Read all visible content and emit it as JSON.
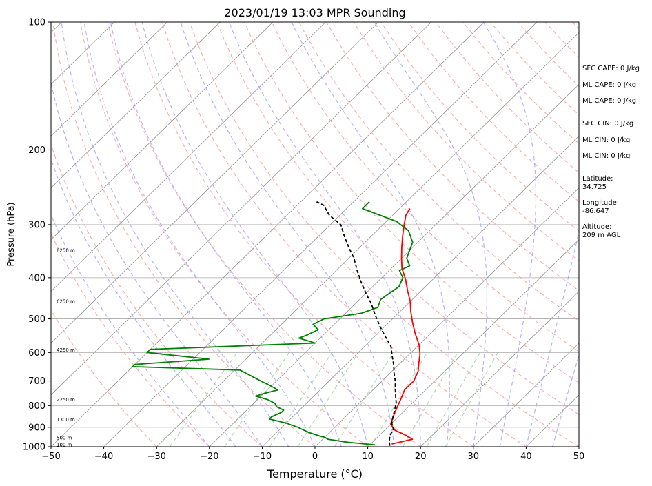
{
  "chart_data": {
    "type": "line",
    "title": "2023/01/19 13:03 MPR Sounding",
    "xlabel": "Temperature (°C)",
    "ylabel": "Pressure (hPa)",
    "xlim": [
      -50,
      50
    ],
    "ylim": [
      1000,
      100
    ],
    "y_scale": "log",
    "grid": true,
    "x_ticks": [
      "−50",
      "−40",
      "−30",
      "−20",
      "−10",
      "0",
      "10",
      "20",
      "30",
      "40",
      "50"
    ],
    "y_ticks": [
      "100",
      "200",
      "300",
      "400",
      "500",
      "600",
      "700",
      "800",
      "900",
      "1000"
    ],
    "height_labels": [
      {
        "p": 990,
        "text": "100 m"
      },
      {
        "p": 955,
        "text": "500 m"
      },
      {
        "p": 865,
        "text": "1300 m"
      },
      {
        "p": 775,
        "text": "2250 m"
      },
      {
        "p": 592,
        "text": "4250 m"
      },
      {
        "p": 455,
        "text": "6250 m"
      },
      {
        "p": 345,
        "text": "8250 m"
      }
    ],
    "series": [
      {
        "color": "#ff0000",
        "style": "solid",
        "points": [
          [
            14,
            985
          ],
          [
            17,
            960
          ],
          [
            15,
            940
          ],
          [
            12,
            915
          ],
          [
            10,
            885
          ],
          [
            9,
            850
          ],
          [
            8,
            810
          ],
          [
            7,
            770
          ],
          [
            6,
            735
          ],
          [
            6,
            700
          ],
          [
            5,
            665
          ],
          [
            3.5,
            635
          ],
          [
            2,
            605
          ],
          [
            0,
            575
          ],
          [
            -3,
            540
          ],
          [
            -5.5,
            510
          ],
          [
            -8,
            480
          ],
          [
            -10,
            455
          ],
          [
            -12.5,
            430
          ],
          [
            -15,
            405
          ],
          [
            -18,
            380
          ],
          [
            -20,
            360
          ],
          [
            -22,
            340
          ],
          [
            -24,
            320
          ],
          [
            -26,
            300
          ],
          [
            -27.5,
            285
          ],
          [
            -28,
            275
          ]
        ]
      },
      {
        "color": "#008000",
        "style": "solid",
        "points": [
          [
            11,
            990
          ],
          [
            5,
            975
          ],
          [
            1,
            960
          ],
          [
            0,
            950
          ],
          [
            -1,
            945
          ],
          [
            -4,
            925
          ],
          [
            -7,
            900
          ],
          [
            -10,
            880
          ],
          [
            -14,
            860
          ],
          [
            -14,
            850
          ],
          [
            -13,
            830
          ],
          [
            -13,
            820
          ],
          [
            -15,
            805
          ],
          [
            -16,
            790
          ],
          [
            -18,
            775
          ],
          [
            -21,
            760
          ],
          [
            -20,
            750
          ],
          [
            -18,
            735
          ],
          [
            -20,
            720
          ],
          [
            -23,
            700
          ],
          [
            -29,
            660
          ],
          [
            -50,
            648
          ],
          [
            -50,
            640
          ],
          [
            -37,
            622
          ],
          [
            -50,
            600
          ],
          [
            -50,
            590
          ],
          [
            -20,
            570
          ],
          [
            -24,
            555
          ],
          [
            -23,
            545
          ],
          [
            -22,
            530
          ],
          [
            -24,
            515
          ],
          [
            -23,
            500
          ],
          [
            -17,
            485
          ],
          [
            -15,
            470
          ],
          [
            -16,
            450
          ],
          [
            -15,
            420
          ],
          [
            -16,
            400
          ],
          [
            -18,
            385
          ],
          [
            -17,
            375
          ],
          [
            -19,
            360
          ],
          [
            -20,
            345
          ],
          [
            -21,
            330
          ],
          [
            -24,
            310
          ],
          [
            -28,
            295
          ],
          [
            -37,
            275
          ],
          [
            -37,
            265
          ]
        ]
      },
      {
        "color": "#000000",
        "style": "dashed",
        "points": [
          [
            14,
            995
          ],
          [
            13,
            970
          ],
          [
            12,
            940
          ],
          [
            11.5,
            910
          ],
          [
            10,
            880
          ],
          [
            9,
            850
          ],
          [
            8,
            820
          ],
          [
            7,
            790
          ],
          [
            6,
            770
          ],
          [
            5,
            750
          ],
          [
            4,
            730
          ],
          [
            2.5,
            700
          ],
          [
            1,
            675
          ],
          [
            -1,
            640
          ],
          [
            -3,
            610
          ],
          [
            -5,
            580
          ],
          [
            -8,
            550
          ],
          [
            -11,
            520
          ],
          [
            -14,
            490
          ],
          [
            -17,
            460
          ],
          [
            -20,
            435
          ],
          [
            -23,
            410
          ],
          [
            -26,
            385
          ],
          [
            -29,
            360
          ],
          [
            -32,
            340
          ],
          [
            -35,
            320
          ],
          [
            -38,
            300
          ],
          [
            -42,
            285
          ],
          [
            -45,
            270
          ],
          [
            -47,
            265
          ]
        ]
      }
    ]
  },
  "side_info": [
    {
      "text": "SFC CAPE: 0 J/kg"
    },
    {
      "text": "ML CAPE: 0 J/kg"
    },
    {
      "text": "ML CAPE: 0 J/kg"
    },
    {
      "text": "SFC CIN: 0 J/kg"
    },
    {
      "text": "ML CIN: 0 J/kg"
    },
    {
      "text": "ML CIN: 0 J/kg"
    },
    {
      "text": "Latitude:\n34.725"
    },
    {
      "text": "Longitude:\n-86.647"
    },
    {
      "text": "Altitude:\n209 m AGL"
    }
  ],
  "colors": {
    "temperature": "#ff0000",
    "dewpoint": "#008000",
    "parcel": "#000000",
    "dry_adiabat": "#ff9999",
    "moist_adiabat": "#9999ff",
    "mixing_ratio": "#80c080",
    "isotherm": "#888888"
  }
}
